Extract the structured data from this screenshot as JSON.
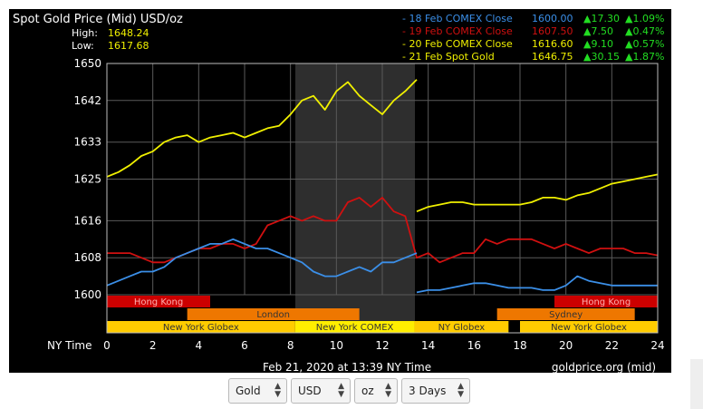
{
  "chart_data": {
    "type": "line",
    "title": "Spot Gold Price (Mid) USD/oz",
    "stats": [
      {
        "label": "High:",
        "value": "1648.24"
      },
      {
        "label": "Low:",
        "value": "1617.68"
      }
    ],
    "xlabel": "NY Time",
    "x_ticks": [
      "0",
      "2",
      "4",
      "6",
      "8",
      "10",
      "12",
      "14",
      "16",
      "18",
      "20",
      "22",
      "24"
    ],
    "xlim": [
      0,
      24
    ],
    "y_ticks": [
      "1650",
      "1642",
      "1633",
      "1625",
      "1616",
      "1608",
      "1600"
    ],
    "ylim": [
      1600,
      1650
    ],
    "footer_left": "Feb 21, 2020 at 13:39 NY Time",
    "footer_right": "goldprice.org (mid)",
    "highlight_range": [
      8.2,
      13.4
    ],
    "legend": [
      {
        "name": "- 18 Feb COMEX Close",
        "price": "1600.00",
        "change": "▲17.30",
        "pct": "▲1.09%",
        "color": "#3b8fe8"
      },
      {
        "name": "- 19 Feb COMEX Close",
        "price": "1607.50",
        "change": "▲7.50",
        "pct": "▲0.47%",
        "color": "#d01010"
      },
      {
        "name": "- 20 Feb COMEX Close",
        "price": "1616.60",
        "change": "▲9.10",
        "pct": "▲0.57%",
        "color": "#f0f000"
      },
      {
        "name": "- 21 Feb Spot Gold",
        "price": "1646.75",
        "change": "▲30.15",
        "pct": "▲1.87%",
        "color": "#f0f000"
      }
    ],
    "sessions": [
      {
        "row": 0,
        "label": "Hong Kong",
        "start": 0,
        "end": 4.5,
        "color": "#cc0000"
      },
      {
        "row": 0,
        "label": "Hong Kong",
        "start": 19.5,
        "end": 24,
        "color": "#cc0000"
      },
      {
        "row": 1,
        "label": "London",
        "start": 3.5,
        "end": 11,
        "color": "#ee7700"
      },
      {
        "row": 1,
        "label": "Sydney",
        "start": 17,
        "end": 23,
        "color": "#ee7700"
      },
      {
        "row": 2,
        "label": "New York Globex",
        "start": 0,
        "end": 8.2,
        "color": "#ffcc00"
      },
      {
        "row": 2,
        "label": "New York COMEX",
        "start": 8.2,
        "end": 13.4,
        "color": "#ffee00"
      },
      {
        "row": 2,
        "label": "NY Globex",
        "start": 13.4,
        "end": 17.5,
        "color": "#ffcc00"
      },
      {
        "row": 2,
        "label": "New York Globex",
        "start": 18,
        "end": 24,
        "color": "#ffcc00"
      }
    ],
    "series": [
      {
        "color": "#f0f000",
        "x": [
          0,
          0.5,
          1,
          1.5,
          2,
          2.5,
          3,
          3.5,
          4,
          4.5,
          5,
          5.5,
          6,
          6.5,
          7,
          7.5,
          8,
          8.5,
          9,
          9.5,
          10,
          10.5,
          11,
          11.5,
          12,
          12.5,
          13,
          13.5
        ],
        "y": [
          1625.5,
          1626.5,
          1628,
          1630,
          1631,
          1633,
          1634,
          1634.5,
          1633,
          1634,
          1634.5,
          1635,
          1634,
          1635,
          1636,
          1636.5,
          1639,
          1642,
          1643,
          1640,
          1644,
          1646,
          1643,
          1641,
          1639,
          1642,
          1644,
          1646.5
        ]
      },
      {
        "color": "#f0f000",
        "x": [
          13.5,
          14,
          14.5,
          15,
          15.5,
          16,
          16.5,
          17,
          17.5,
          18,
          18.5,
          19,
          19.5,
          20,
          20.5,
          21,
          21.5,
          22,
          22.5,
          23,
          23.5,
          24
        ],
        "y": [
          1618,
          1619,
          1619.5,
          1620,
          1620,
          1619.5,
          1619.5,
          1619.5,
          1619.5,
          1619.5,
          1620,
          1621,
          1621,
          1620.5,
          1621.5,
          1622,
          1623,
          1624,
          1624.5,
          1625,
          1625.5,
          1626
        ]
      },
      {
        "color": "#d01010",
        "x": [
          0,
          0.5,
          1,
          1.5,
          2,
          2.5,
          3,
          3.5,
          4,
          4.5,
          5,
          5.5,
          6,
          6.5,
          7,
          7.5,
          8,
          8.5,
          9,
          9.5,
          10,
          10.5,
          11,
          11.5,
          12,
          12.5,
          13,
          13.5,
          14,
          14.5,
          15,
          15.5,
          16,
          16.5,
          17,
          17.5,
          18,
          18.5,
          19,
          19.5,
          20,
          20.5,
          21,
          21.5,
          22,
          22.5,
          23,
          23.5,
          24
        ],
        "y": [
          1609,
          1609,
          1609,
          1608,
          1607,
          1607,
          1608,
          1609,
          1610,
          1610,
          1611,
          1611,
          1610,
          1611,
          1615,
          1616,
          1617,
          1616,
          1617,
          1616,
          1616,
          1620,
          1621,
          1619,
          1621,
          1618,
          1617,
          1608,
          1609,
          1607,
          1608,
          1609,
          1609,
          1612,
          1611,
          1612,
          1612,
          1612,
          1611,
          1610,
          1611,
          1610,
          1609,
          1610,
          1610,
          1610,
          1609,
          1609,
          1608.5
        ]
      },
      {
        "color": "#3b8fe8",
        "x": [
          0,
          0.5,
          1,
          1.5,
          2,
          2.5,
          3,
          3.5,
          4,
          4.5,
          5,
          5.5,
          6,
          6.5,
          7,
          7.5,
          8,
          8.5,
          9,
          9.5,
          10,
          10.5,
          11,
          11.5,
          12,
          12.5,
          13,
          13.5
        ],
        "y": [
          1602,
          1603,
          1604,
          1605,
          1605,
          1606,
          1608,
          1609,
          1610,
          1611,
          1611,
          1612,
          1611,
          1610,
          1610,
          1609,
          1608,
          1607,
          1605,
          1604,
          1604,
          1605,
          1606,
          1605,
          1607,
          1607,
          1608,
          1609
        ]
      },
      {
        "color": "#3b8fe8",
        "x": [
          13.5,
          14,
          14.5,
          15,
          15.5,
          16,
          16.5,
          17,
          17.5,
          18,
          18.5,
          19,
          19.5,
          20,
          20.5,
          21,
          21.5,
          22,
          22.5,
          23,
          23.5,
          24
        ],
        "y": [
          1600.5,
          1601,
          1601,
          1601.5,
          1602,
          1602.5,
          1602.5,
          1602,
          1601.5,
          1601.5,
          1601.5,
          1601,
          1601,
          1602,
          1604,
          1603,
          1602.5,
          1602,
          1602,
          1602,
          1602,
          1602
        ]
      }
    ]
  },
  "controls": [
    {
      "value": "Gold"
    },
    {
      "value": "USD"
    },
    {
      "value": "oz"
    },
    {
      "value": "3 Days"
    }
  ]
}
